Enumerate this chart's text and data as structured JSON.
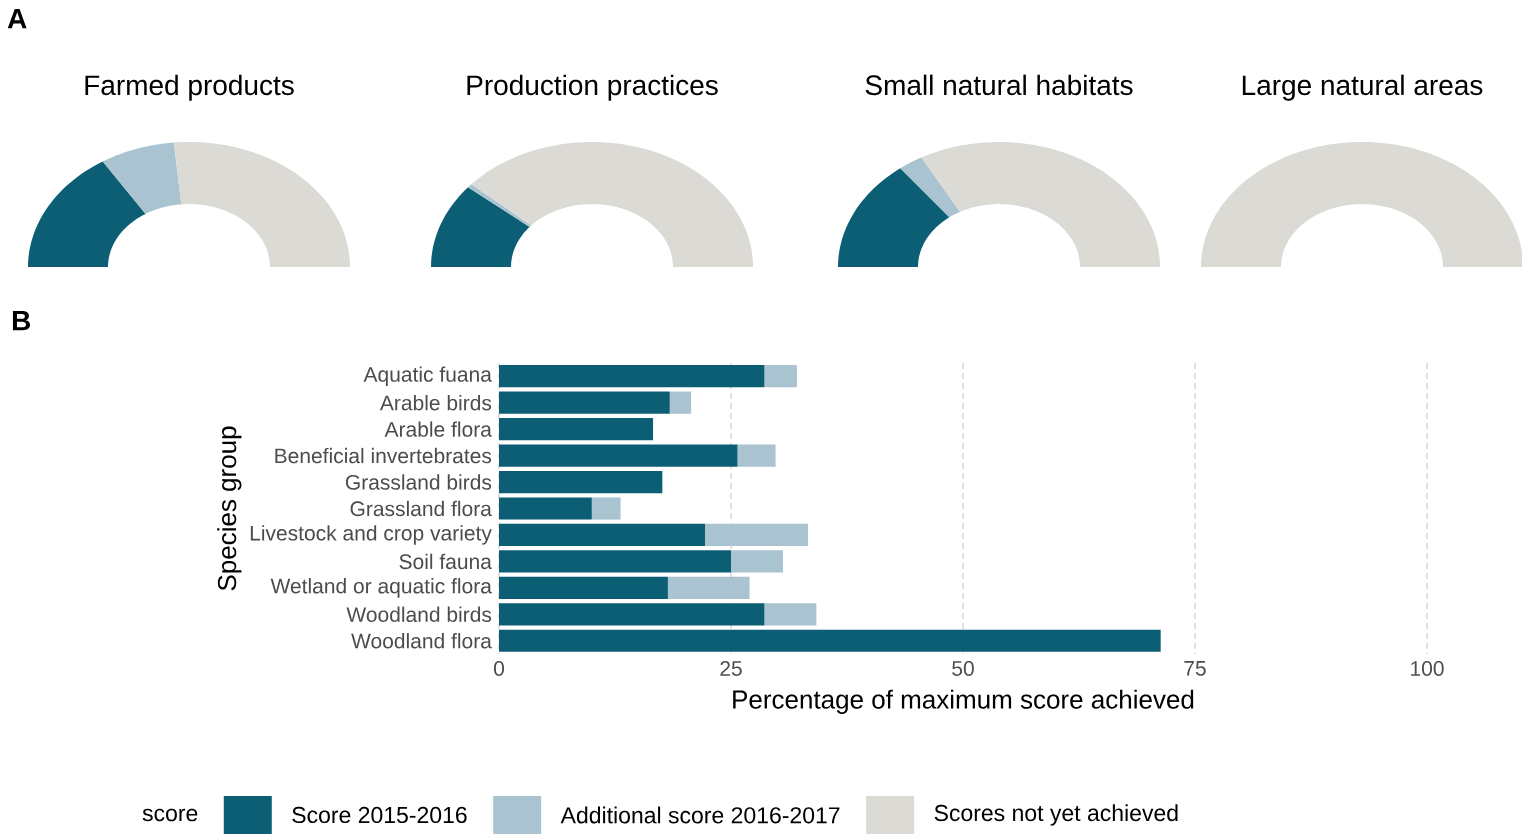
{
  "chart_data": [
    {
      "type": "donut",
      "title": "Farmed products",
      "annotations": [
        "A"
      ],
      "categories": [
        "Score 2015-2016",
        "Additional score 2016-2017",
        "Scores not yet achieved"
      ],
      "values": [
        32,
        15,
        53
      ],
      "colors": [
        "#0b5e74",
        "#a9c4d0",
        "#dcdad5"
      ],
      "legend": "bottom",
      "legend_title": "score"
    },
    {
      "type": "donut",
      "title": "Production practices",
      "categories": [
        null,
        null,
        null
      ],
      "values": [
        22,
        1,
        77
      ],
      "colors": [
        "#0b5e74",
        "#a9c4d0",
        "#dcdad5"
      ]
    },
    {
      "type": "donut",
      "title": "Small natural habitats",
      "categories": [
        null,
        null,
        null
      ],
      "values": [
        29,
        5,
        66
      ],
      "colors": [
        "#0b5e74",
        "#a9c4d0",
        "#dcdad5"
      ]
    },
    {
      "type": "pie",
      "title": "Large natural areas",
      "categories": [
        null,
        null,
        null
      ],
      "values": [
        0,
        0,
        100
      ],
      "colors": [
        "#0b5e74",
        "#a9c4d0",
        "#dcdad5"
      ]
    },
    {
      "type": "bar",
      "orientation": "horizontal",
      "stacked": true,
      "annotations": [
        "B"
      ],
      "xlabel": "Percentage of maximum score achieved",
      "ylabel": "Species group",
      "categories": [
        "Aquatic fuana",
        "Arable birds",
        "Arable flora",
        "Beneficial invertebrates",
        "Grassland birds",
        "Grassland flora",
        "Livestock and crop variety",
        "Soil fauna",
        "Wetland or aquatic flora",
        "Woodland birds",
        "Woodland flora"
      ],
      "series": [
        {
          "color": "#0b5e74",
          "values": [
            28.6,
            18.4,
            16.6,
            25.7,
            17.6,
            10.0,
            22.2,
            25.0,
            18.2,
            28.6,
            71.3
          ]
        },
        {
          "color": "#a9c4d0",
          "values": [
            3.5,
            2.3,
            0,
            4.1,
            0,
            3.1,
            11.1,
            5.6,
            8.8,
            5.6,
            0
          ]
        }
      ],
      "xlim": [
        0,
        100
      ],
      "xticks": [
        0,
        25,
        50,
        75,
        100
      ],
      "grid": "x"
    }
  ]
}
